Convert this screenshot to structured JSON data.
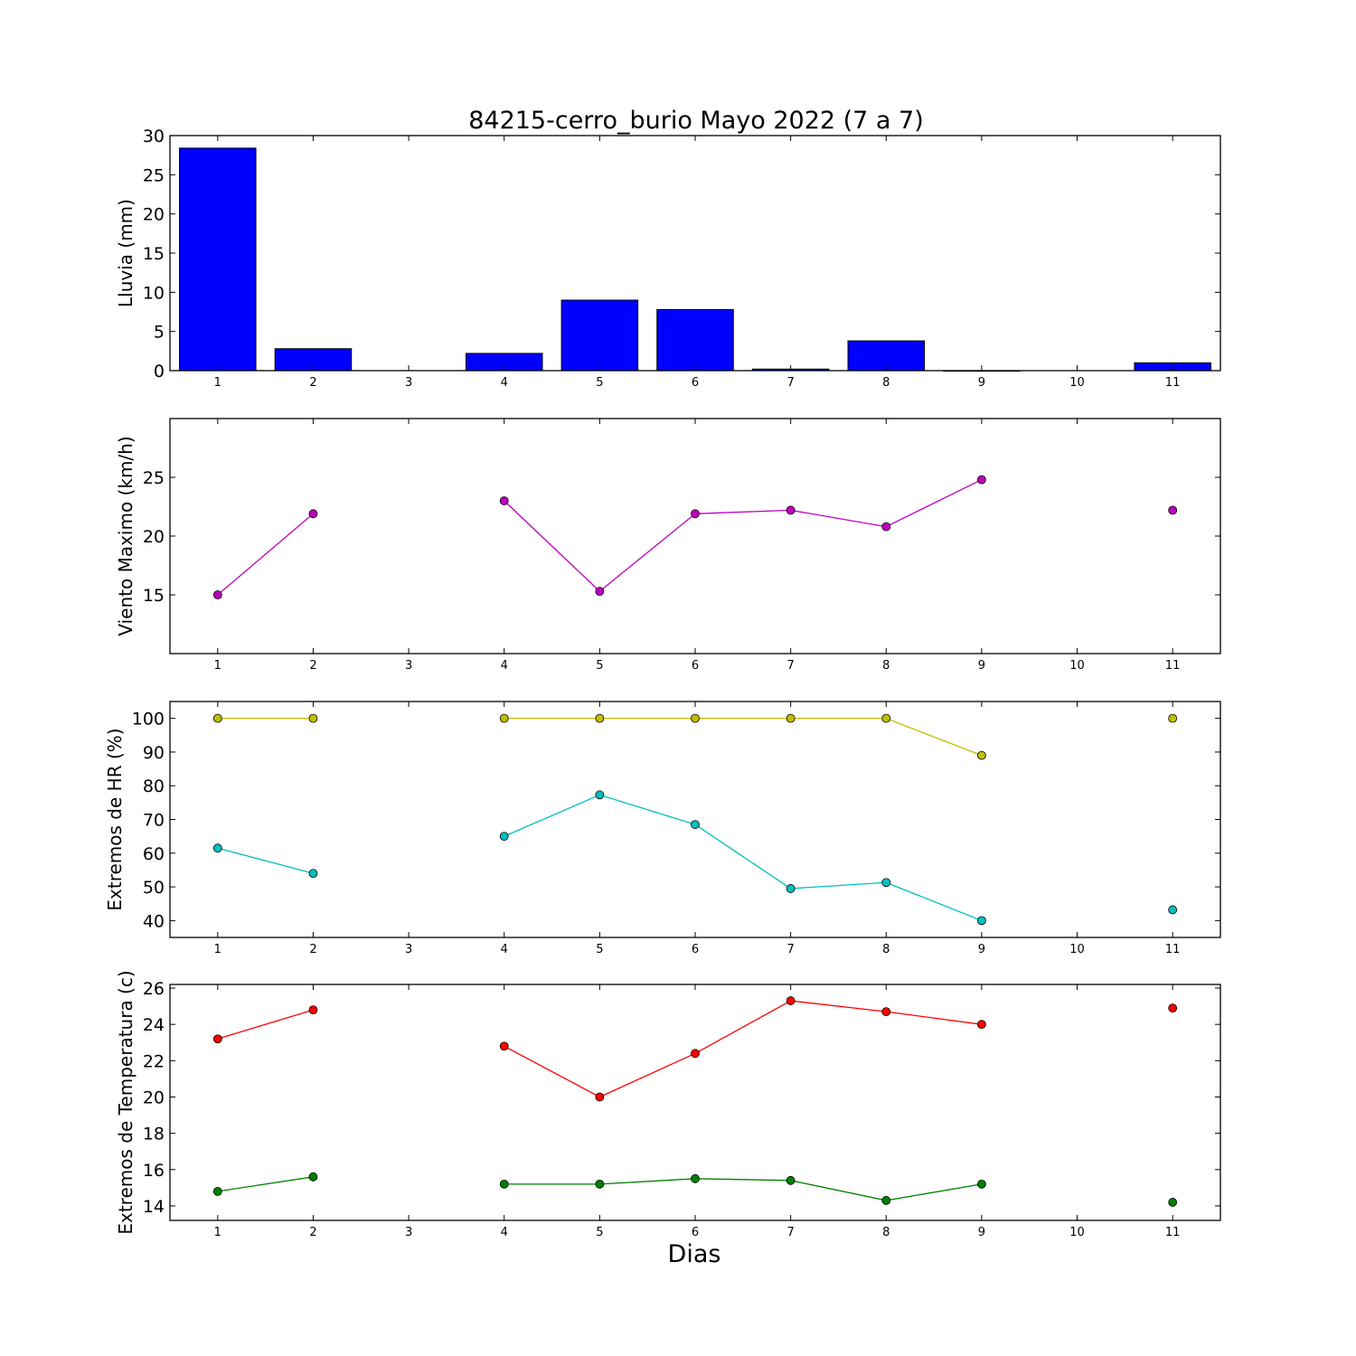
{
  "figure": {
    "title": "84215-cerro_burio Mayo 2022  (7 a 7)",
    "xlabel": "Dias"
  },
  "chart_data": [
    {
      "type": "bar",
      "ylabel": "Lluvia (mm)",
      "x": [
        1,
        2,
        3,
        4,
        5,
        6,
        7,
        8,
        9,
        10,
        11
      ],
      "xticks": [
        1,
        2,
        3,
        4,
        5,
        6,
        7,
        8,
        9,
        10,
        11
      ],
      "xlim": [
        0.5,
        11.5
      ],
      "ylim": [
        0,
        30
      ],
      "yticks": [
        0,
        5,
        10,
        15,
        20,
        25,
        30
      ],
      "series": [
        {
          "values": [
            28.4,
            2.8,
            null,
            2.2,
            9.0,
            7.8,
            0.2,
            3.8,
            0.0,
            null,
            1.0
          ],
          "color": "#0000ff"
        }
      ]
    },
    {
      "type": "line",
      "ylabel": "Viento Maximo (km/h)",
      "x": [
        1,
        2,
        3,
        4,
        5,
        6,
        7,
        8,
        9,
        10,
        11
      ],
      "xticks": [
        1,
        2,
        3,
        4,
        5,
        6,
        7,
        8,
        9,
        10,
        11
      ],
      "xlim": [
        0.5,
        11.5
      ],
      "ylim": [
        10,
        30
      ],
      "yticks": [
        15,
        20,
        25
      ],
      "series": [
        {
          "values": [
            15.0,
            21.9,
            null,
            23.0,
            15.3,
            21.9,
            22.2,
            20.8,
            24.8,
            null,
            22.2
          ],
          "color": "#bf00bf"
        }
      ]
    },
    {
      "type": "line",
      "ylabel": "Extremos de HR (%)",
      "x": [
        1,
        2,
        3,
        4,
        5,
        6,
        7,
        8,
        9,
        10,
        11
      ],
      "xticks": [
        1,
        2,
        3,
        4,
        5,
        6,
        7,
        8,
        9,
        10,
        11
      ],
      "xlim": [
        0.5,
        11.5
      ],
      "ylim": [
        35,
        105
      ],
      "yticks": [
        40,
        50,
        60,
        70,
        80,
        90,
        100
      ],
      "series": [
        {
          "values": [
            100,
            100,
            null,
            100,
            100,
            100,
            100,
            100,
            89,
            null,
            100
          ],
          "color": "#bfbf00"
        },
        {
          "values": [
            61.5,
            54,
            null,
            65,
            77.3,
            68.5,
            49.5,
            51.3,
            40,
            null,
            43.2
          ],
          "color": "#00bfbf"
        }
      ]
    },
    {
      "type": "line",
      "ylabel": "Extremos de Temperatura (c)",
      "x": [
        1,
        2,
        3,
        4,
        5,
        6,
        7,
        8,
        9,
        10,
        11
      ],
      "xticks": [
        1,
        2,
        3,
        4,
        5,
        6,
        7,
        8,
        9,
        10,
        11
      ],
      "xlim": [
        0.5,
        11.5
      ],
      "ylim": [
        13.2,
        26.2
      ],
      "yticks": [
        14,
        16,
        18,
        20,
        22,
        24,
        26
      ],
      "series": [
        {
          "values": [
            23.2,
            24.8,
            null,
            22.8,
            20.0,
            22.4,
            25.3,
            24.7,
            24.0,
            null,
            24.9
          ],
          "color": "#ff0000"
        },
        {
          "values": [
            14.8,
            15.6,
            null,
            15.2,
            15.2,
            15.5,
            15.4,
            14.3,
            15.2,
            null,
            14.2
          ],
          "color": "#008000"
        }
      ]
    }
  ]
}
